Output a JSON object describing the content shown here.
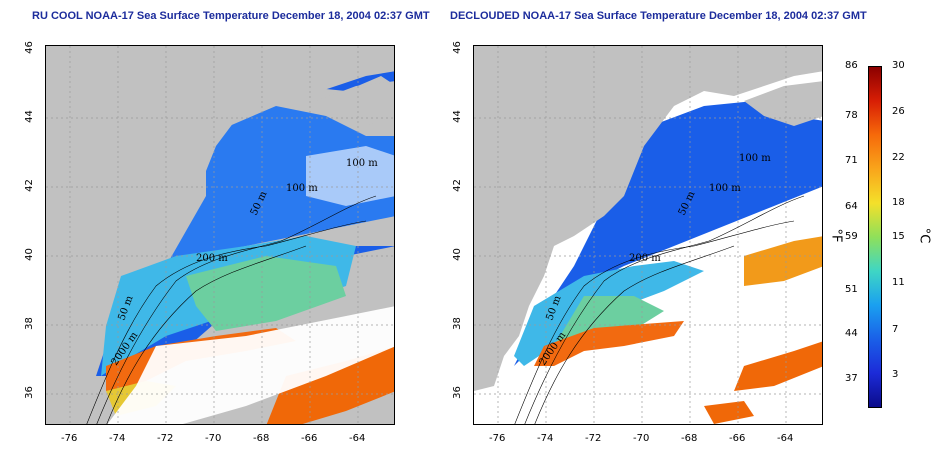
{
  "left_panel": {
    "title": "RU COOL NOAA-17 Sea Surface Temperature December 18, 2004 02:37 GMT"
  },
  "right_panel": {
    "title": "DECLOUDED NOAA-17 Sea Surface Temperature December 18, 2004 02:37 GMT"
  },
  "axes": {
    "x_ticks": [
      "-76",
      "-74",
      "-72",
      "-70",
      "-68",
      "-66",
      "-64"
    ],
    "y_ticks": [
      "46",
      "44",
      "42",
      "40",
      "38",
      "36"
    ],
    "x_range": [
      -77.5,
      -63
    ],
    "y_range": [
      35,
      46
    ]
  },
  "contours": {
    "left": [
      "200 m",
      "100 m",
      "100 m",
      "50 m",
      "50 m",
      "2000 m"
    ],
    "right": [
      "200 m",
      "100 m",
      "100 m",
      "50 m",
      "50 m",
      "2000 m"
    ]
  },
  "colorbar": {
    "fahrenheit": [
      "86",
      "78",
      "71",
      "64",
      "59",
      "51",
      "44",
      "37"
    ],
    "celsius": [
      "30",
      "26",
      "22",
      "18",
      "15",
      "11",
      "7",
      "3"
    ],
    "unit_f": "°F",
    "unit_c": "°C",
    "colors": [
      "#8b0000",
      "#d81e05",
      "#f66a0a",
      "#f9a51b",
      "#f4e02a",
      "#8fe05a",
      "#3fd6c4",
      "#1aa0f0",
      "#1a60e8",
      "#1c2bd8",
      "#0b0b8a"
    ]
  },
  "colors": {
    "land": "#c1c1c1",
    "cloud": "#ffffff",
    "grid": "#9a9a9a"
  }
}
